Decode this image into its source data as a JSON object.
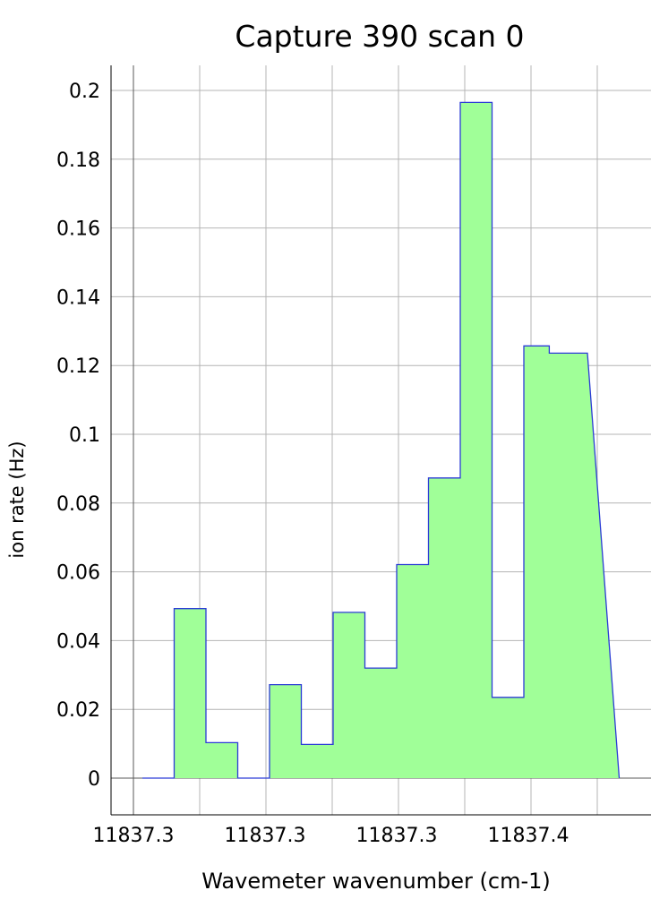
{
  "chart_data": {
    "type": "area",
    "title": "Capture 390 scan 0",
    "xlabel": "Wavemeter wavenumber (cm-1)",
    "ylabel": "ion rate (Hz)",
    "step": "post",
    "x_tick_labels": [
      "11837.3",
      "11837.3",
      "11837.3",
      "11837.4"
    ],
    "y_ticks": [
      0,
      0.02,
      0.04,
      0.06,
      0.08,
      0.1,
      0.12,
      0.14,
      0.16,
      0.18,
      0.2
    ],
    "y_tick_labels": [
      "0",
      "0.02",
      "0.04",
      "0.06",
      "0.08",
      "0.1",
      "0.12",
      "0.14",
      "0.16",
      "0.18",
      "0.2"
    ],
    "ylim": [
      -0.011,
      0.2075
    ],
    "grid": true,
    "colors": {
      "fill": "#a0ff98",
      "line": "#2b3bd6",
      "grid": "#b4b4b4",
      "axis": "#000000"
    },
    "series": [
      {
        "points": [
          [
            0.0,
            0
          ],
          [
            0.5,
            0
          ],
          [
            0.5,
            0.0493
          ],
          [
            1.0,
            0.0493
          ],
          [
            1.0,
            0.0103
          ],
          [
            1.5,
            0.0103
          ],
          [
            1.5,
            0
          ],
          [
            2.0,
            0
          ],
          [
            2.0,
            0.0272
          ],
          [
            2.5,
            0.0272
          ],
          [
            2.5,
            0.0098
          ],
          [
            3.0,
            0.0098
          ],
          [
            3.0,
            0.0482
          ],
          [
            3.5,
            0.0482
          ],
          [
            3.5,
            0.032
          ],
          [
            4.0,
            0.032
          ],
          [
            4.0,
            0.0621
          ],
          [
            4.5,
            0.0621
          ],
          [
            4.5,
            0.0873
          ],
          [
            5.0,
            0.0873
          ],
          [
            5.0,
            0.1965
          ],
          [
            5.5,
            0.1965
          ],
          [
            5.5,
            0.0235
          ],
          [
            6.0,
            0.0235
          ],
          [
            6.0,
            0.1257
          ],
          [
            6.4,
            0.1257
          ],
          [
            6.4,
            0.1236
          ],
          [
            7.0,
            0.1236
          ],
          [
            7.5,
            0
          ]
        ]
      }
    ]
  }
}
